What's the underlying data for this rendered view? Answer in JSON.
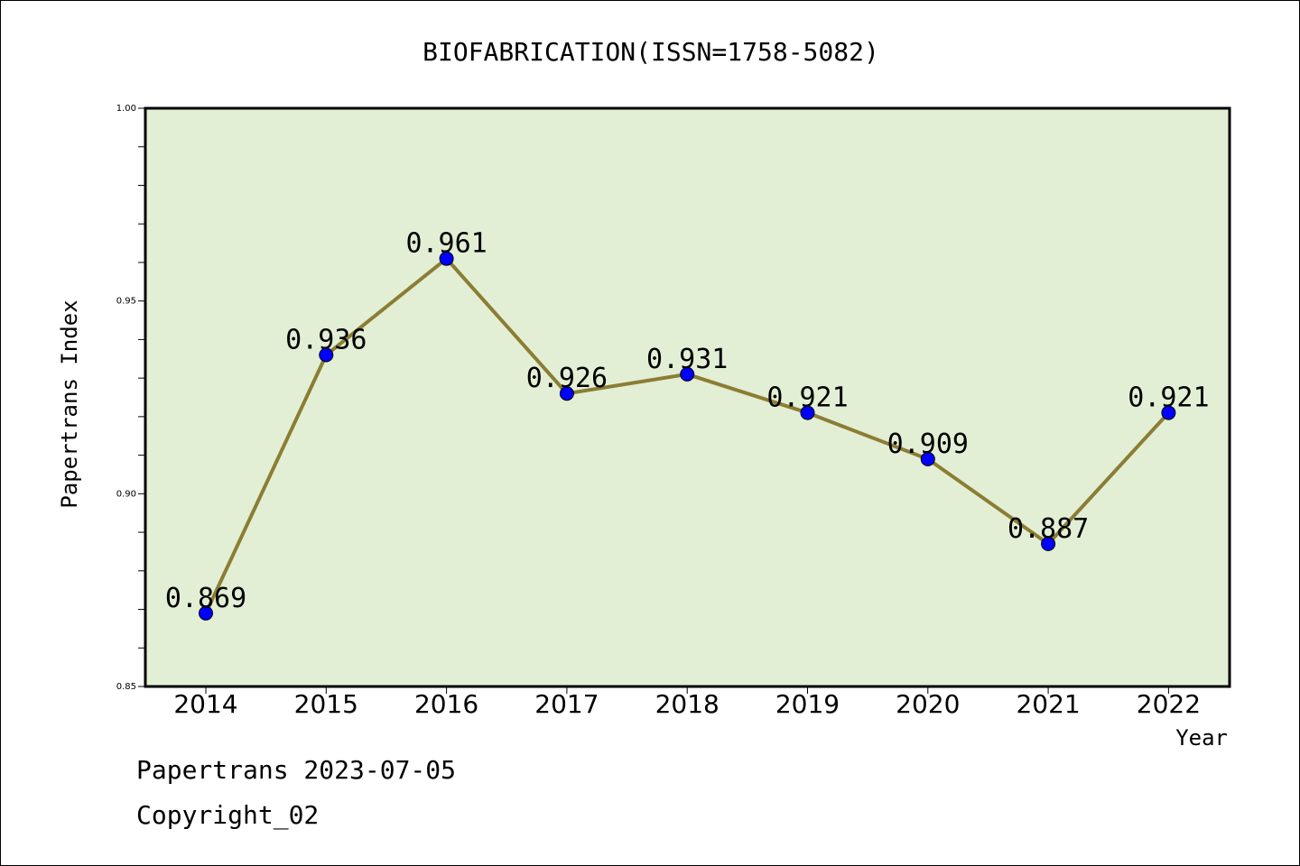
{
  "chart_data": {
    "type": "line",
    "title": "BIOFABRICATION(ISSN=1758-5082)",
    "xlabel": "Year",
    "ylabel": "Papertrans Index",
    "categories": [
      "2014",
      "2015",
      "2016",
      "2017",
      "2018",
      "2019",
      "2020",
      "2021",
      "2022"
    ],
    "values": [
      0.869,
      0.936,
      0.961,
      0.926,
      0.931,
      0.921,
      0.909,
      0.887,
      0.921
    ],
    "value_labels": [
      "0.869",
      "0.936",
      "0.961",
      "0.926",
      "0.931",
      "0.921",
      "0.909",
      "0.887",
      "0.921"
    ],
    "ylim": [
      0.85,
      1.0
    ],
    "yticks": [
      "0.85",
      "0.90",
      "0.95",
      "1.00"
    ],
    "y_minor_step": 0.01,
    "grid": false,
    "colors": {
      "plot_background": "#e2efd5",
      "line": "#8b7d33",
      "marker": "#0000ff"
    }
  },
  "footer": {
    "source": "Papertrans 2023-07-05",
    "copyright": "Copyright_02"
  }
}
